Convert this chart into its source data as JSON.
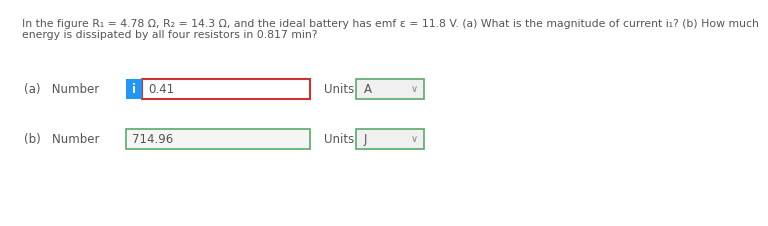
{
  "bg_color": "#ffffff",
  "text_color": "#555555",
  "problem_line1": "In the figure R₁ = 4.78 Ω, R₂ = 14.3 Ω, and the ideal battery has emf ε = 11.8 V. (a) What is the magnitude of current i₁? (b) How much",
  "problem_line2": "energy is dissipated by all four resistors in 0.817 min?",
  "label_a": "(a)   Number",
  "label_b": "(b)   Number",
  "info_btn_text": "i",
  "info_btn_color": "#2196F3",
  "info_btn_text_color": "#ffffff",
  "value_a": "0.41",
  "value_b": "714.96",
  "units_a": "A",
  "units_b": "J",
  "units_label": "Units",
  "border_red": "#cc3333",
  "border_green": "#5aaa6a",
  "input_bg": "#f5f5f5",
  "dropdown_bg": "#f0f0f0",
  "font_size_problem": 7.8,
  "font_size_ui": 8.5
}
